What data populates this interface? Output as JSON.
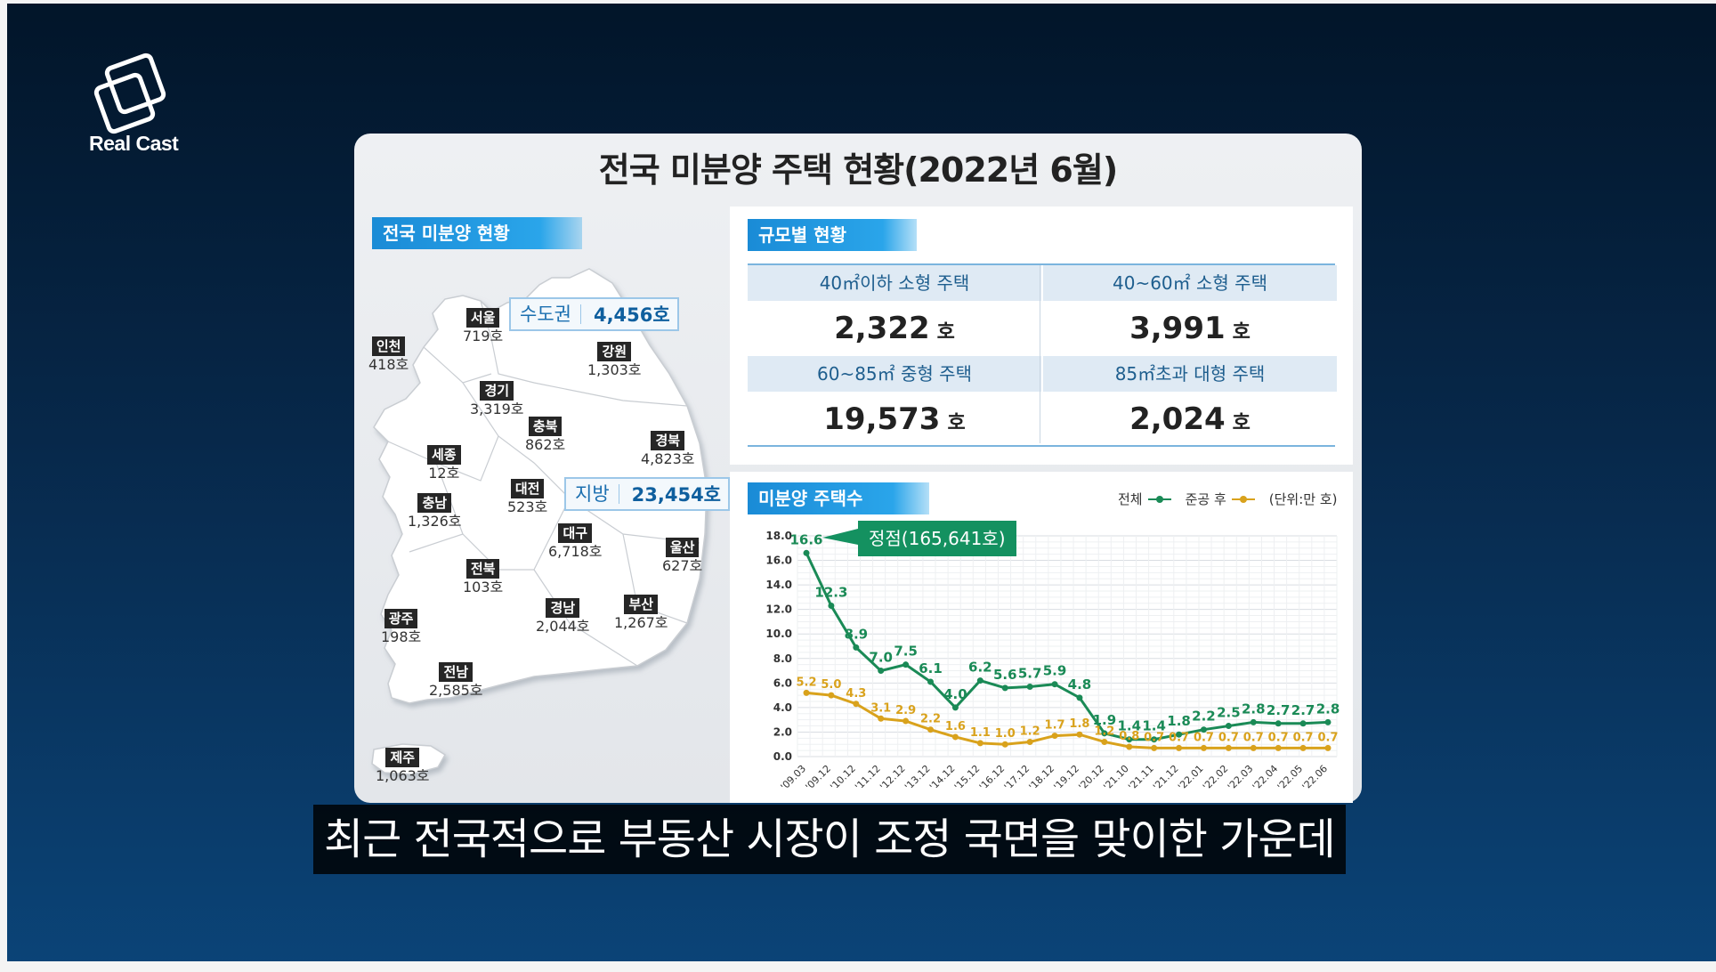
{
  "brand": {
    "logo_text": "Real Cast"
  },
  "title": "전국 미분양 주택 현황(2022년 6월)",
  "map_section": {
    "tag": "전국 미분양 현황",
    "capital_area": {
      "name": "수도권",
      "value": "4,456호"
    },
    "provinces_total": {
      "name": "지방",
      "value": "23,454호"
    },
    "regions": [
      {
        "name": "서울",
        "value": "719호"
      },
      {
        "name": "인천",
        "value": "418호"
      },
      {
        "name": "경기",
        "value": "3,319호"
      },
      {
        "name": "강원",
        "value": "1,303호"
      },
      {
        "name": "충북",
        "value": "862호"
      },
      {
        "name": "경북",
        "value": "4,823호"
      },
      {
        "name": "세종",
        "value": "12호"
      },
      {
        "name": "대전",
        "value": "523호"
      },
      {
        "name": "충남",
        "value": "1,326호"
      },
      {
        "name": "대구",
        "value": "6,718호"
      },
      {
        "name": "울산",
        "value": "627호"
      },
      {
        "name": "전북",
        "value": "103호"
      },
      {
        "name": "광주",
        "value": "198호"
      },
      {
        "name": "경남",
        "value": "2,044호"
      },
      {
        "name": "부산",
        "value": "1,267호"
      },
      {
        "name": "전남",
        "value": "2,585호"
      },
      {
        "name": "제주",
        "value": "1,063호"
      }
    ]
  },
  "size_section": {
    "tag": "규모별 현황",
    "unit": "호",
    "items": [
      {
        "label": "40㎡이하 소형 주택",
        "value": "2,322"
      },
      {
        "label": "40~60㎡ 소형 주택",
        "value": "3,991"
      },
      {
        "label": "60~85㎡ 중형 주택",
        "value": "19,573"
      },
      {
        "label": "85㎡초과 대형 주택",
        "value": "2,024"
      }
    ]
  },
  "chart_section": {
    "tag": "미분양 주택수",
    "legend": {
      "total": "전체",
      "completed": "준공 후",
      "unit": "(단위:만 호)"
    },
    "peak_label": "정점(165,641호)"
  },
  "chart_data": {
    "type": "line",
    "title": "미분양 주택수",
    "unit": "만 호",
    "ylim": [
      0,
      18
    ],
    "yticks": [
      "0.0",
      "2.0",
      "4.0",
      "6.0",
      "8.0",
      "10.0",
      "12.0",
      "14.0",
      "16.0",
      "18.0"
    ],
    "categories": [
      "'09.03",
      "'09.12",
      "'10.12",
      "'11.12",
      "'12.12",
      "'13.12",
      "'14.12",
      "'15.12",
      "'16.12",
      "'17.12",
      "'18.12",
      "'19.12",
      "'20.12",
      "'21.10",
      "'21.11",
      "'21.12",
      "'22.01",
      "'22.02",
      "'22.03",
      "'22.04",
      "'22.05",
      "'22.06"
    ],
    "series": [
      {
        "name": "전체",
        "color": "#1a8a56",
        "values": [
          16.6,
          12.3,
          8.9,
          7.0,
          7.5,
          6.1,
          4.0,
          6.2,
          5.6,
          5.7,
          5.9,
          4.8,
          1.9,
          1.4,
          1.4,
          1.8,
          2.2,
          2.5,
          2.8,
          2.7,
          2.7,
          2.8
        ]
      },
      {
        "name": "준공 후",
        "color": "#d9a21c",
        "values": [
          5.2,
          5.0,
          4.3,
          3.1,
          2.9,
          2.2,
          1.6,
          1.1,
          1.0,
          1.2,
          1.7,
          1.8,
          1.2,
          0.8,
          0.7,
          0.7,
          0.7,
          0.7,
          0.7,
          0.7,
          0.7,
          0.7
        ]
      }
    ]
  },
  "subtitle": "최근 전국적으로 부동산 시장이 조정 국면을 맞이한 가운데"
}
